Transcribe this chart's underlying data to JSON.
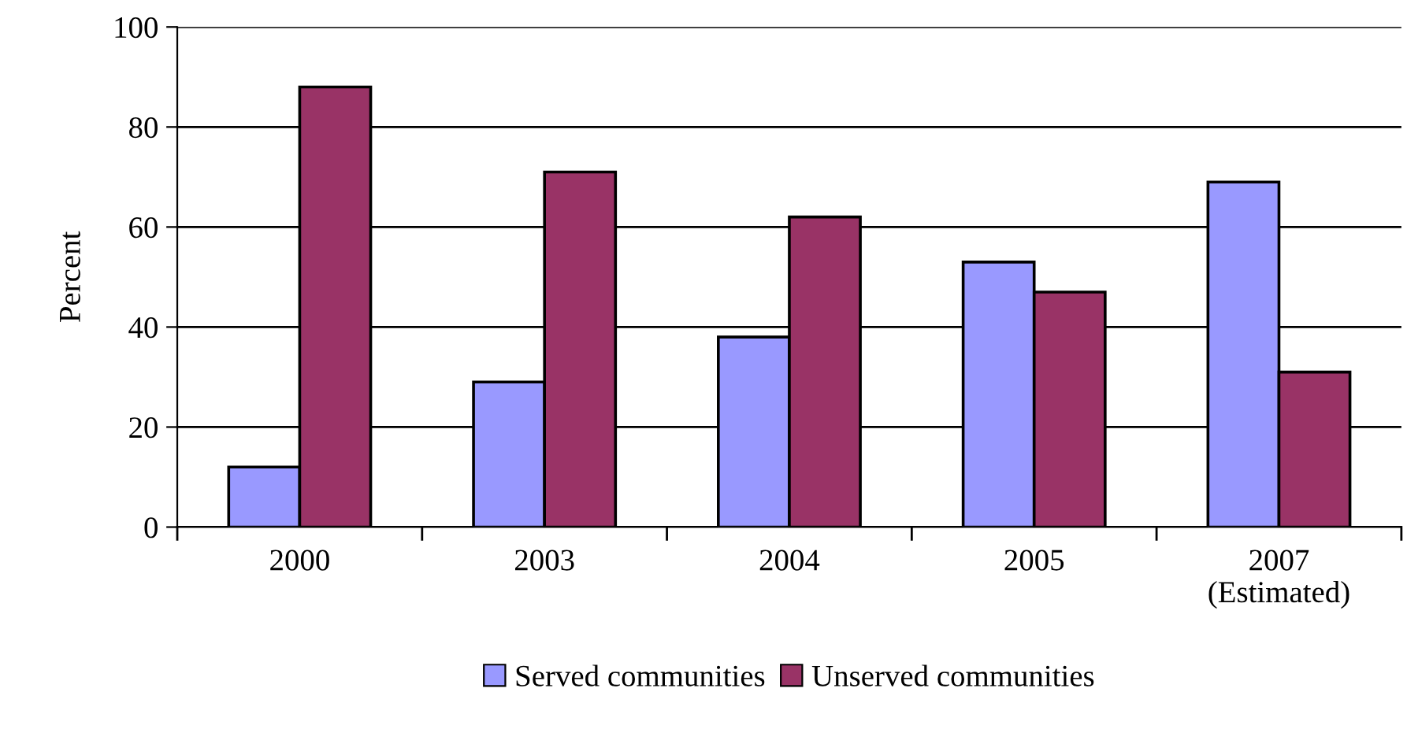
{
  "chart_data": {
    "type": "bar",
    "ylabel": "Percent",
    "categories": [
      "2000",
      "2003",
      "2004",
      "2005",
      "2007\n(Estimated)"
    ],
    "series": [
      {
        "name": "Served communities",
        "color": "#9999ff",
        "values": [
          12,
          29,
          38,
          53,
          69
        ]
      },
      {
        "name": "Unserved communities",
        "color": "#993366",
        "values": [
          88,
          71,
          62,
          47,
          31
        ]
      }
    ],
    "ylim": [
      0,
      100
    ],
    "yticks": [
      0,
      20,
      40,
      60,
      80,
      100
    ],
    "grid": "y",
    "legend": "bottom"
  }
}
